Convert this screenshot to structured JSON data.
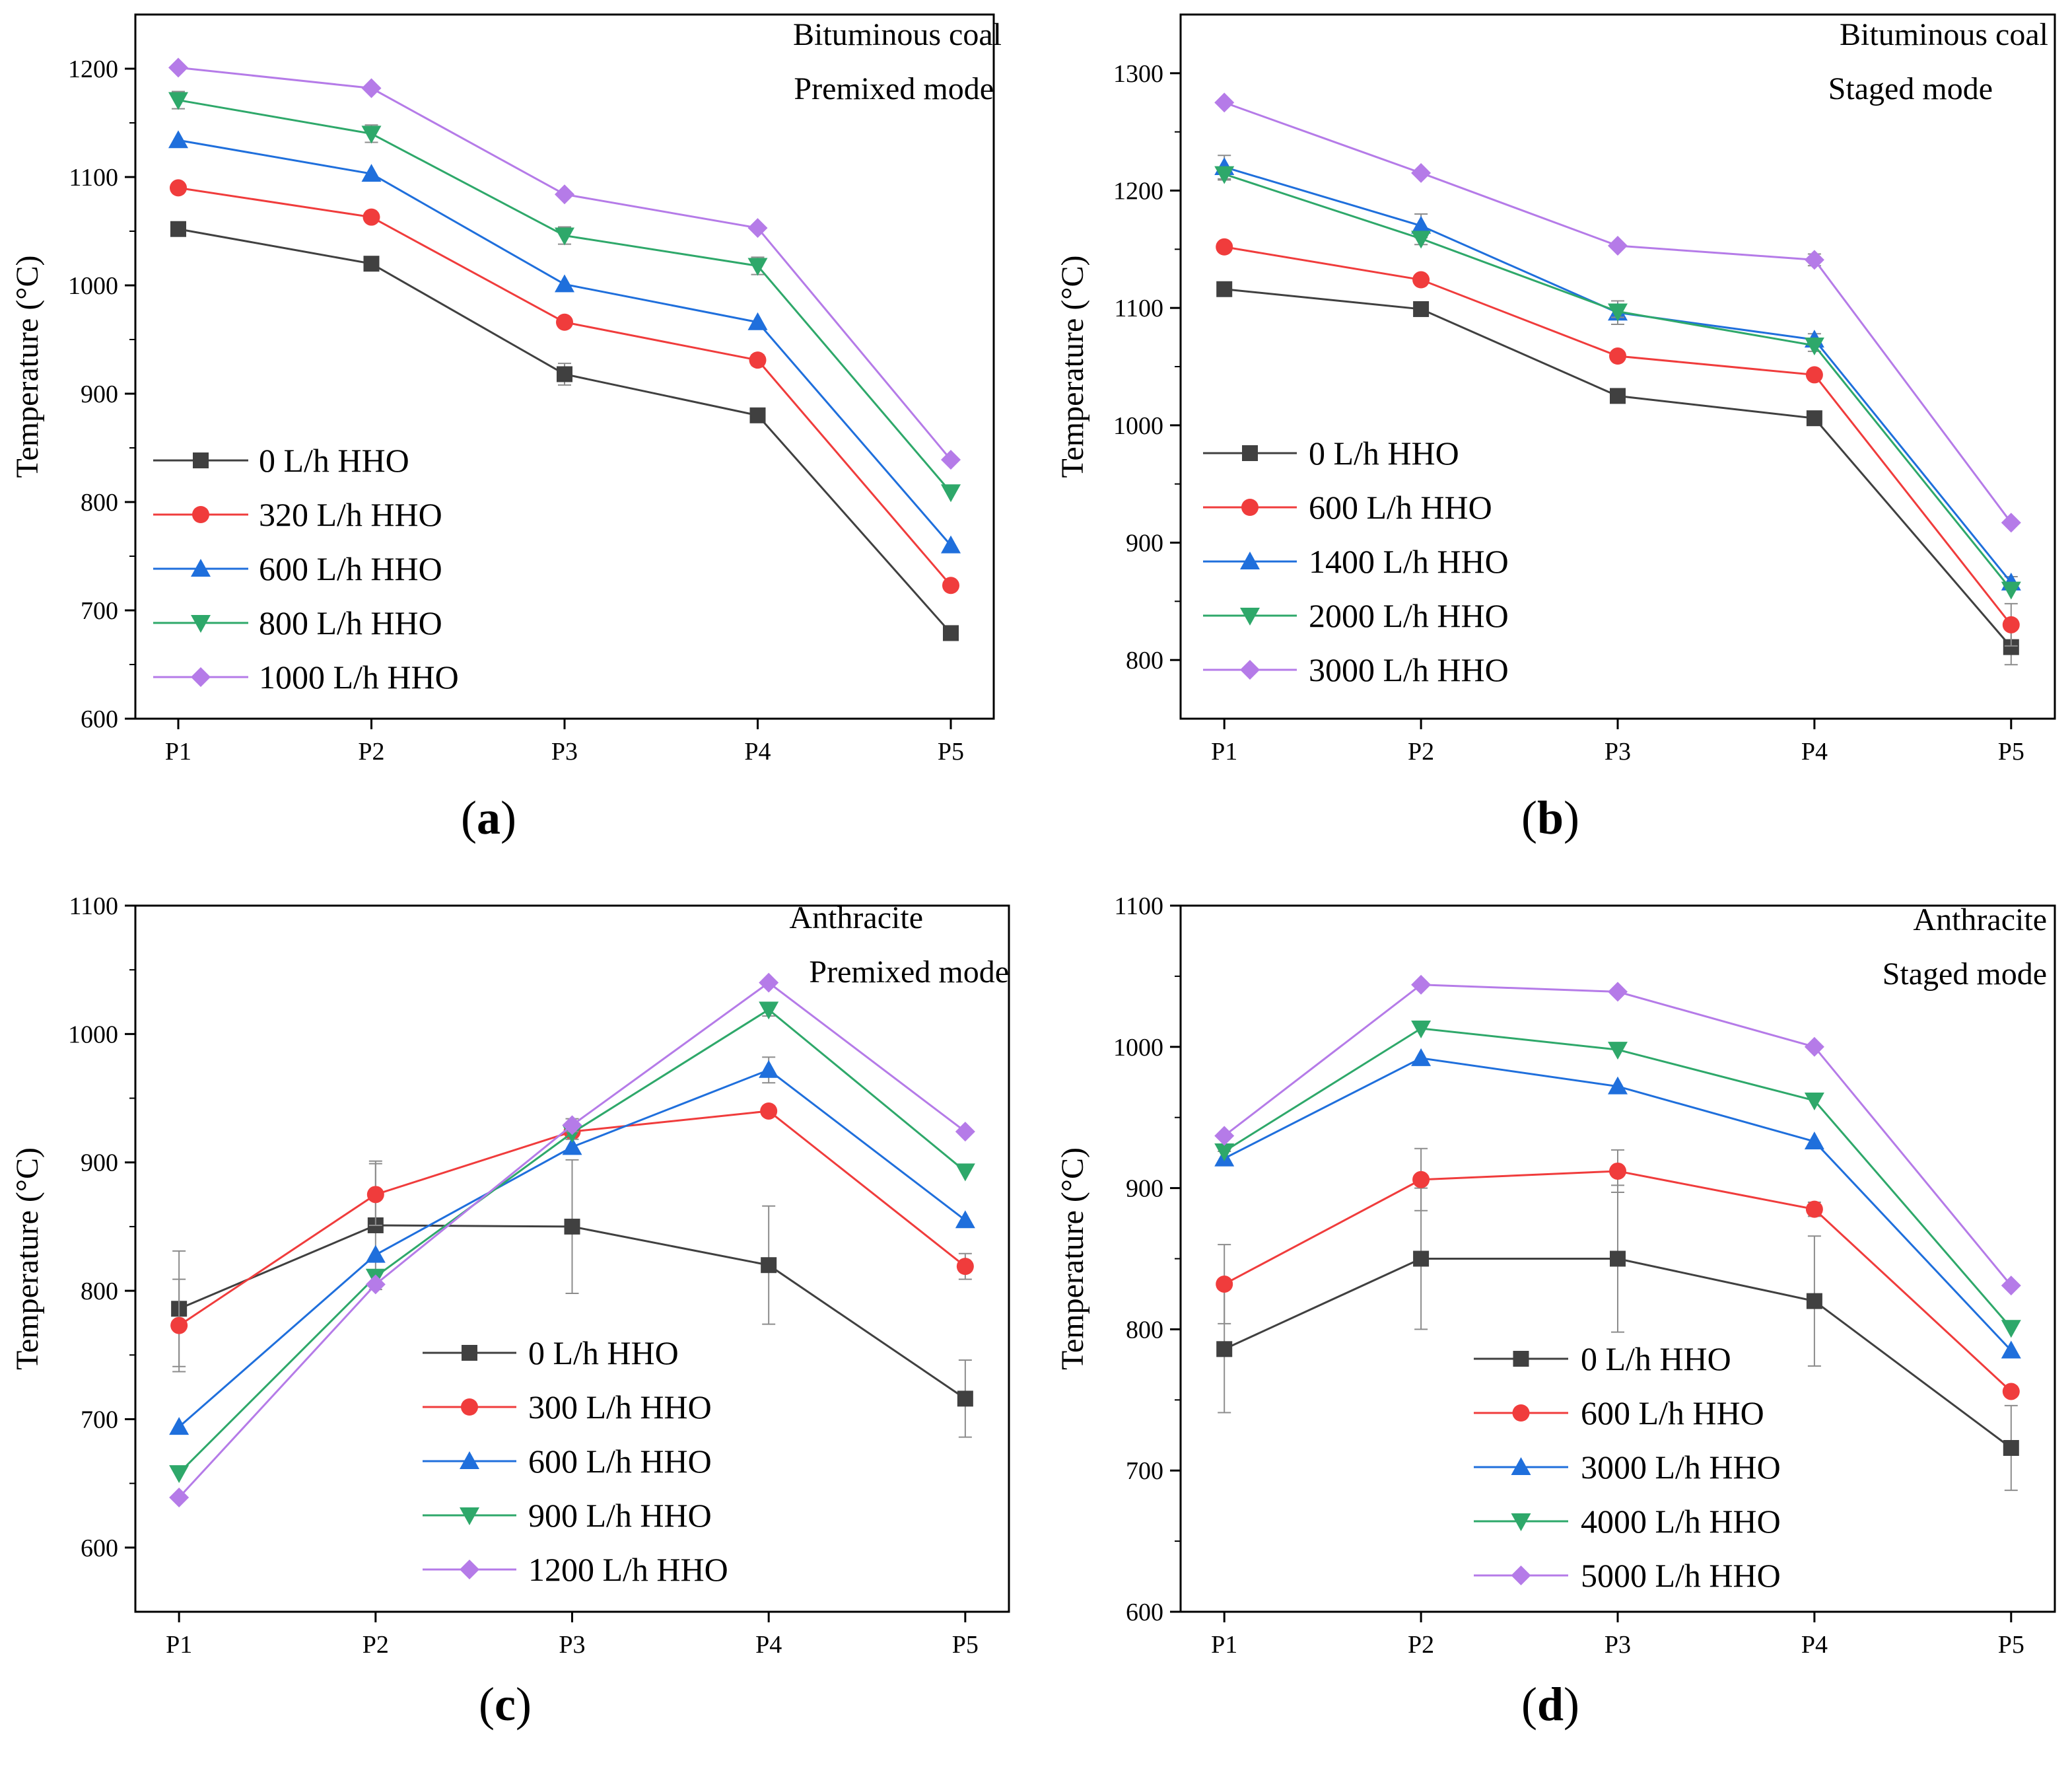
{
  "colors": {
    "axis": "#000000",
    "series": [
      "#404040",
      "#f03c3c",
      "#1f6fdc",
      "#2ea86a",
      "#b57be8"
    ],
    "errorbar": "#8c8c8c"
  },
  "chart_data": [
    {
      "type": "line",
      "panel_label": "a",
      "title_lines": [
        "Bituminous coal",
        "Premixed mode"
      ],
      "ylabel": "Temperature (°C)",
      "xlabel": "",
      "categories": [
        "P1",
        "P2",
        "P3",
        "P4",
        "P5"
      ],
      "ylim": [
        600,
        1250
      ],
      "yticks": [
        600,
        700,
        800,
        900,
        1000,
        1100,
        1200
      ],
      "legend_position": "bottom-left",
      "series": [
        {
          "name": "0 L/h HHO",
          "marker": "square",
          "values": [
            1052,
            1020,
            918,
            880,
            679
          ],
          "errors": [
            0,
            5,
            10,
            0,
            0
          ]
        },
        {
          "name": "320 L/h HHO",
          "marker": "circle",
          "values": [
            1090,
            1063,
            966,
            931,
            723
          ],
          "errors": [
            0,
            0,
            0,
            5,
            0
          ]
        },
        {
          "name": "600 L/h HHO",
          "marker": "triangle-up",
          "values": [
            1134,
            1103,
            1001,
            966,
            760
          ],
          "errors": [
            0,
            0,
            0,
            0,
            0
          ]
        },
        {
          "name": "800 L/h HHO",
          "marker": "triangle-down",
          "values": [
            1171,
            1140,
            1046,
            1018,
            809
          ],
          "errors": [
            8,
            8,
            8,
            8,
            0
          ]
        },
        {
          "name": "1000 L/h HHO",
          "marker": "diamond",
          "values": [
            1201,
            1182,
            1084,
            1053,
            839
          ],
          "errors": [
            0,
            0,
            0,
            0,
            0
          ]
        }
      ]
    },
    {
      "type": "line",
      "panel_label": "b",
      "title_lines": [
        "Bituminous coal",
        "Staged mode"
      ],
      "ylabel": "Temperature (°C)",
      "xlabel": "",
      "categories": [
        "P1",
        "P2",
        "P3",
        "P4",
        "P5"
      ],
      "ylim": [
        750,
        1350
      ],
      "yticks": [
        800,
        900,
        1000,
        1100,
        1200,
        1300
      ],
      "legend_position": "bottom-left",
      "series": [
        {
          "name": "0 L/h HHO",
          "marker": "square",
          "values": [
            1116,
            1099,
            1025,
            1006,
            811
          ],
          "errors": [
            0,
            0,
            5,
            0,
            15
          ]
        },
        {
          "name": "600 L/h HHO",
          "marker": "circle",
          "values": [
            1152,
            1124,
            1059,
            1043,
            830
          ],
          "errors": [
            0,
            0,
            0,
            0,
            18
          ]
        },
        {
          "name": "1400 L/h HHO",
          "marker": "triangle-up",
          "values": [
            1220,
            1170,
            1096,
            1073,
            866
          ],
          "errors": [
            10,
            10,
            10,
            5,
            5
          ]
        },
        {
          "name": "2000 L/h HHO",
          "marker": "triangle-down",
          "values": [
            1214,
            1159,
            1097,
            1068,
            860
          ],
          "errors": [
            5,
            5,
            5,
            5,
            0
          ]
        },
        {
          "name": "3000 L/h HHO",
          "marker": "diamond",
          "values": [
            1275,
            1215,
            1153,
            1141,
            917
          ],
          "errors": [
            0,
            0,
            0,
            5,
            0
          ]
        }
      ]
    },
    {
      "type": "line",
      "panel_label": "c",
      "title_lines": [
        "Anthracite",
        "Premixed mode"
      ],
      "ylabel": "Temperature (°C)",
      "xlabel": "",
      "categories": [
        "P1",
        "P2",
        "P3",
        "P4",
        "P5"
      ],
      "ylim": [
        550,
        1100
      ],
      "yticks": [
        600,
        700,
        800,
        900,
        1000,
        1100
      ],
      "legend_position": "bottom-center",
      "series": [
        {
          "name": "0 L/h HHO",
          "marker": "square",
          "values": [
            786,
            851,
            850,
            820,
            716
          ],
          "errors": [
            45,
            50,
            52,
            46,
            30
          ]
        },
        {
          "name": "300 L/h HHO",
          "marker": "circle",
          "values": [
            773,
            875,
            924,
            940,
            819
          ],
          "errors": [
            36,
            24,
            0,
            0,
            10
          ]
        },
        {
          "name": "600 L/h HHO",
          "marker": "triangle-up",
          "values": [
            694,
            828,
            912,
            972,
            855
          ],
          "errors": [
            0,
            0,
            0,
            10,
            0
          ]
        },
        {
          "name": "900 L/h HHO",
          "marker": "triangle-down",
          "values": [
            658,
            811,
            923,
            1019,
            893
          ],
          "errors": [
            0,
            0,
            5,
            5,
            0
          ]
        },
        {
          "name": "1200 L/h HHO",
          "marker": "diamond",
          "values": [
            639,
            805,
            929,
            1040,
            924
          ],
          "errors": [
            0,
            0,
            5,
            0,
            0
          ]
        }
      ]
    },
    {
      "type": "line",
      "panel_label": "d",
      "title_lines": [
        "Anthracite",
        "Staged mode"
      ],
      "ylabel": "Temperature (°C)",
      "xlabel": "",
      "categories": [
        "P1",
        "P2",
        "P3",
        "P4",
        "P5"
      ],
      "ylim": [
        600,
        1100
      ],
      "yticks": [
        600,
        700,
        800,
        900,
        1000,
        1100
      ],
      "legend_position": "bottom-center",
      "series": [
        {
          "name": "0 L/h HHO",
          "marker": "square",
          "values": [
            786,
            850,
            850,
            820,
            716
          ],
          "errors": [
            45,
            50,
            52,
            46,
            30
          ]
        },
        {
          "name": "600 L/h HHO",
          "marker": "circle",
          "values": [
            832,
            906,
            912,
            885,
            756
          ],
          "errors": [
            28,
            22,
            15,
            5,
            0
          ]
        },
        {
          "name": "3000 L/h HHO",
          "marker": "triangle-up",
          "values": [
            921,
            992,
            972,
            933,
            785
          ],
          "errors": [
            5,
            0,
            0,
            0,
            0
          ]
        },
        {
          "name": "4000 L/h HHO",
          "marker": "triangle-down",
          "values": [
            926,
            1013,
            998,
            962,
            801
          ],
          "errors": [
            0,
            0,
            0,
            0,
            0
          ]
        },
        {
          "name": "5000 L/h HHO",
          "marker": "diamond",
          "values": [
            937,
            1044,
            1039,
            1000,
            831
          ],
          "errors": [
            0,
            0,
            0,
            0,
            0
          ]
        }
      ]
    }
  ]
}
